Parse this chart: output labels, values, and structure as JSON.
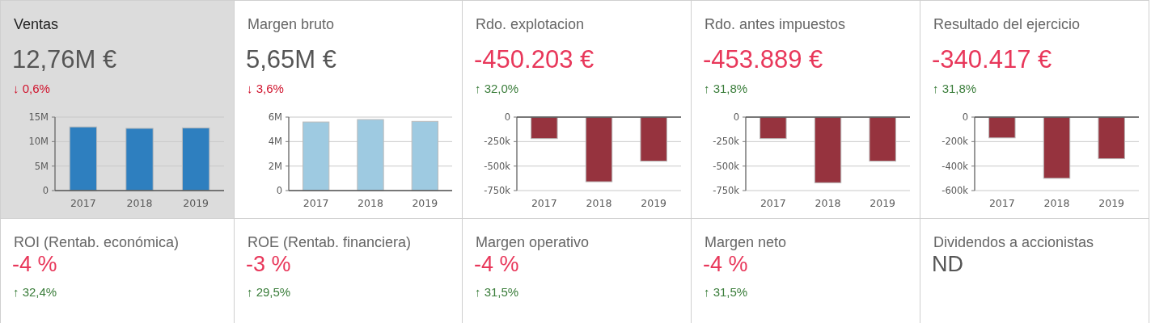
{
  "chart_data": [
    {
      "type": "bar",
      "title": "Ventas",
      "subtitle": "12,76M €",
      "annotations": [
        "↓ 0,6%"
      ],
      "categories": [
        "2017",
        "2018",
        "2019"
      ],
      "values": [
        13000000,
        12700000,
        12800000
      ],
      "color": "#2e7fbf",
      "ylim": [
        0,
        15000000
      ],
      "yticks": [
        {
          "value": 0,
          "label": "0"
        },
        {
          "value": 5000000,
          "label": "5M"
        },
        {
          "value": 10000000,
          "label": "10M"
        },
        {
          "value": 15000000,
          "label": "15M"
        }
      ],
      "grid": "y"
    },
    {
      "type": "bar",
      "title": "Margen bruto",
      "subtitle": "5,65M €",
      "annotations": [
        "↓ 3,6%"
      ],
      "categories": [
        "2017",
        "2018",
        "2019"
      ],
      "values": [
        5600000,
        5800000,
        5650000
      ],
      "color": "#9ecae1",
      "ylim": [
        0,
        6000000
      ],
      "yticks": [
        {
          "value": 0,
          "label": "0"
        },
        {
          "value": 2000000,
          "label": "2M"
        },
        {
          "value": 4000000,
          "label": "4M"
        },
        {
          "value": 6000000,
          "label": "6M"
        }
      ],
      "grid": "y"
    },
    {
      "type": "bar",
      "title": "Rdo. explotacion",
      "subtitle": "-450.203 €",
      "annotations": [
        "↑ 32,0%"
      ],
      "categories": [
        "2017",
        "2018",
        "2019"
      ],
      "values": [
        -220000,
        -660000,
        -450000
      ],
      "color": "#96333e",
      "ylim": [
        -750000,
        0
      ],
      "yticks": [
        {
          "value": -750000,
          "label": "-750k"
        },
        {
          "value": -500000,
          "label": "-500k"
        },
        {
          "value": -250000,
          "label": "-250k"
        },
        {
          "value": 0,
          "label": "0"
        }
      ],
      "grid": "y"
    },
    {
      "type": "bar",
      "title": "Rdo. antes impuestos",
      "subtitle": "-453.889 €",
      "annotations": [
        "↑ 31,8%"
      ],
      "categories": [
        "2017",
        "2018",
        "2019"
      ],
      "values": [
        -220000,
        -670000,
        -450000
      ],
      "color": "#96333e",
      "ylim": [
        -750000,
        0
      ],
      "yticks": [
        {
          "value": -750000,
          "label": "-750k"
        },
        {
          "value": -500000,
          "label": "-500k"
        },
        {
          "value": -250000,
          "label": "-250k"
        },
        {
          "value": 0,
          "label": "0"
        }
      ],
      "grid": "y"
    },
    {
      "type": "bar",
      "title": "Resultado del ejercicio",
      "subtitle": "-340.417 €",
      "annotations": [
        "↑ 31,8%"
      ],
      "categories": [
        "2017",
        "2018",
        "2019"
      ],
      "values": [
        -170000,
        -500000,
        -340000
      ],
      "color": "#96333e",
      "ylim": [
        -600000,
        0
      ],
      "yticks": [
        {
          "value": -600000,
          "label": "-600k"
        },
        {
          "value": -400000,
          "label": "-400k"
        },
        {
          "value": -200000,
          "label": "-200k"
        },
        {
          "value": 0,
          "label": "0"
        }
      ],
      "grid": "y"
    },
    {
      "type": "other",
      "title": "ROI (Rentab. económica)",
      "subtitle": "-4 %",
      "annotations": [
        "↑ 32,4%"
      ]
    },
    {
      "type": "other",
      "title": "ROE (Rentab. financiera)",
      "subtitle": "-3 %",
      "annotations": [
        "↑ 29,5%"
      ]
    },
    {
      "type": "other",
      "title": "Margen operativo",
      "subtitle": "-4 %",
      "annotations": [
        "↑ 31,5%"
      ]
    },
    {
      "type": "other",
      "title": "Margen neto",
      "subtitle": "-4 %",
      "annotations": [
        "↑ 31,5%"
      ]
    },
    {
      "type": "other",
      "title": "Dividendos a accionistas",
      "subtitle": "ND"
    }
  ]
}
